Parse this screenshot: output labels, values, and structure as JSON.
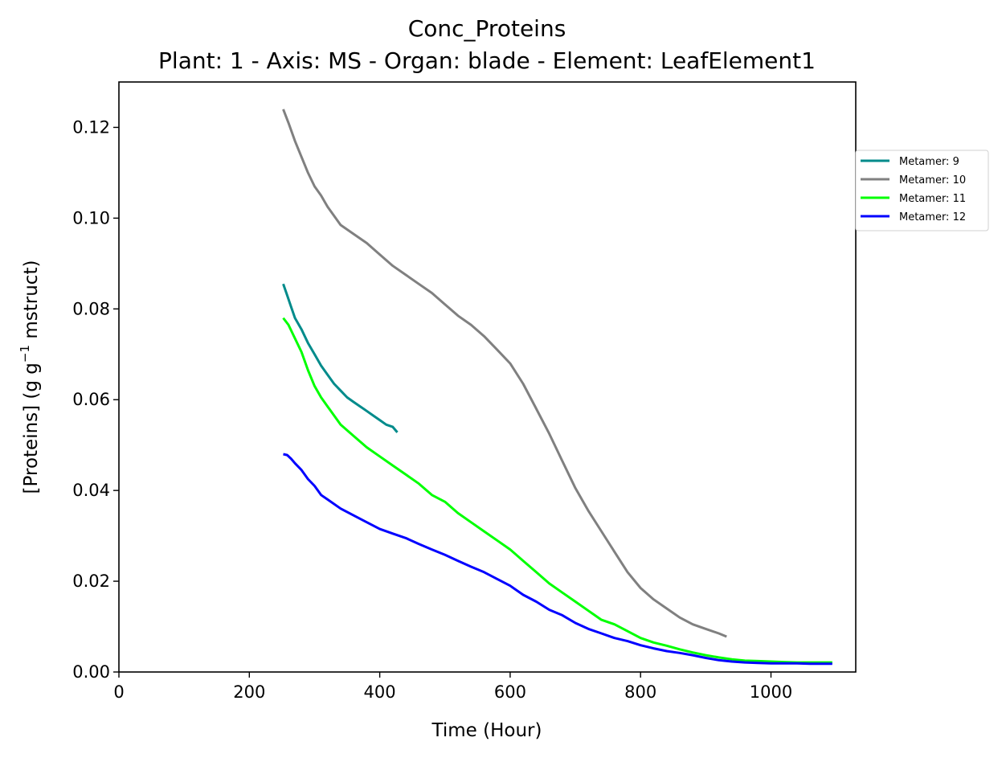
{
  "chart_data": {
    "type": "line",
    "title": "Conc_Proteins",
    "subtitle": "Plant: 1 - Axis: MS - Organ: blade - Element: LeafElement1",
    "xlabel": "Time (Hour)",
    "ylabel_main": "[Proteins] (g g",
    "ylabel_sup": "−1",
    "ylabel_tail": " mstruct)",
    "xlim": [
      0,
      1130
    ],
    "ylim": [
      0,
      0.13
    ],
    "xticks": [
      0,
      200,
      400,
      600,
      800,
      1000
    ],
    "xtick_labels": [
      "0",
      "200",
      "400",
      "600",
      "800",
      "1000"
    ],
    "yticks": [
      0,
      0.02,
      0.04,
      0.06,
      0.08,
      0.1,
      0.12
    ],
    "ytick_labels": [
      "0.00",
      "0.02",
      "0.04",
      "0.06",
      "0.08",
      "0.10",
      "0.12"
    ],
    "grid": false,
    "legend_position": "outside-right-top",
    "series": [
      {
        "name": "Metamer: 9",
        "color": "#008b8b",
        "x": [
          252,
          258,
          264,
          270,
          280,
          290,
          300,
          310,
          320,
          330,
          340,
          350,
          360,
          370,
          380,
          390,
          400,
          410,
          420,
          427
        ],
        "y": [
          0.0855,
          0.083,
          0.0805,
          0.078,
          0.0755,
          0.0725,
          0.07,
          0.0675,
          0.0655,
          0.0635,
          0.062,
          0.0605,
          0.0595,
          0.0585,
          0.0575,
          0.0565,
          0.0555,
          0.0545,
          0.054,
          0.0528
        ]
      },
      {
        "name": "Metamer: 10",
        "color": "#808080",
        "x": [
          252,
          260,
          270,
          280,
          290,
          300,
          310,
          320,
          340,
          360,
          380,
          400,
          420,
          440,
          460,
          480,
          500,
          520,
          540,
          560,
          580,
          600,
          620,
          640,
          660,
          680,
          700,
          720,
          740,
          760,
          780,
          800,
          820,
          840,
          860,
          880,
          900,
          920,
          932
        ],
        "y": [
          0.124,
          0.121,
          0.117,
          0.1135,
          0.11,
          0.107,
          0.105,
          0.1025,
          0.0985,
          0.0965,
          0.0945,
          0.092,
          0.0895,
          0.0875,
          0.0855,
          0.0835,
          0.081,
          0.0785,
          0.0765,
          0.074,
          0.071,
          0.068,
          0.0635,
          0.058,
          0.0525,
          0.0465,
          0.0405,
          0.0355,
          0.031,
          0.0265,
          0.022,
          0.0185,
          0.016,
          0.014,
          0.012,
          0.0105,
          0.0095,
          0.0085,
          0.0078
        ]
      },
      {
        "name": "Metamer: 11",
        "color": "#00ff00",
        "x": [
          252,
          260,
          270,
          280,
          290,
          300,
          310,
          320,
          340,
          360,
          380,
          400,
          420,
          440,
          460,
          480,
          500,
          520,
          540,
          560,
          580,
          600,
          620,
          640,
          660,
          680,
          700,
          720,
          740,
          760,
          780,
          800,
          820,
          840,
          860,
          880,
          900,
          920,
          940,
          960,
          980,
          1000,
          1020,
          1040,
          1060,
          1080,
          1094
        ],
        "y": [
          0.078,
          0.0765,
          0.0735,
          0.0705,
          0.0665,
          0.063,
          0.0605,
          0.0585,
          0.0545,
          0.052,
          0.0495,
          0.0475,
          0.0455,
          0.0435,
          0.0415,
          0.039,
          0.0375,
          0.035,
          0.033,
          0.031,
          0.029,
          0.027,
          0.0245,
          0.022,
          0.0195,
          0.0175,
          0.0155,
          0.0135,
          0.0115,
          0.0105,
          0.009,
          0.0075,
          0.0065,
          0.0058,
          0.005,
          0.0043,
          0.0037,
          0.0032,
          0.0028,
          0.0025,
          0.0024,
          0.0023,
          0.0022,
          0.0021,
          0.0021,
          0.0021,
          0.0021
        ]
      },
      {
        "name": "Metamer: 12",
        "color": "#0000ff",
        "x": [
          252,
          258,
          264,
          270,
          280,
          290,
          300,
          310,
          320,
          340,
          360,
          380,
          400,
          420,
          440,
          460,
          480,
          500,
          520,
          540,
          560,
          580,
          600,
          620,
          640,
          660,
          680,
          700,
          720,
          740,
          760,
          780,
          800,
          820,
          840,
          860,
          880,
          900,
          920,
          940,
          960,
          980,
          1000,
          1020,
          1040,
          1060,
          1080,
          1094
        ],
        "y": [
          0.048,
          0.0478,
          0.047,
          0.046,
          0.0445,
          0.0425,
          0.041,
          0.039,
          0.038,
          0.036,
          0.0345,
          0.033,
          0.0315,
          0.0305,
          0.0295,
          0.0282,
          0.027,
          0.0258,
          0.0245,
          0.0232,
          0.022,
          0.0205,
          0.019,
          0.017,
          0.0155,
          0.0137,
          0.0125,
          0.0108,
          0.0095,
          0.0085,
          0.0075,
          0.0068,
          0.0059,
          0.0052,
          0.0046,
          0.0042,
          0.0037,
          0.0031,
          0.0026,
          0.0023,
          0.0021,
          0.002,
          0.0019,
          0.0019,
          0.0019,
          0.0018,
          0.0018,
          0.0018
        ]
      }
    ]
  }
}
